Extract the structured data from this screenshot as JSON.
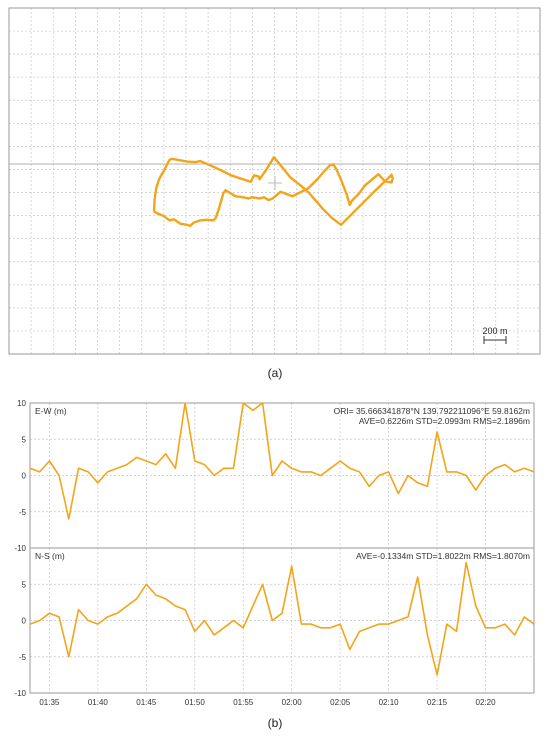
{
  "colors": {
    "track": "#f2a51a",
    "grid": "#c8c8c8",
    "frame": "#9a9a9a",
    "axisline": "#b0b0b0"
  },
  "panel_a": {
    "caption": "(a)",
    "scale_bar_label": "200 m"
  },
  "panel_b": {
    "caption": "(b)"
  },
  "chart_data": [
    {
      "type": "line",
      "panel": "a",
      "title": "",
      "xlabel": "",
      "ylabel": "",
      "scale_bar": "200 m",
      "series": [
        {
          "values": [
            [
              -1100,
              -260
            ],
            [
              -1095,
              -150
            ],
            [
              -1080,
              -50
            ],
            [
              -1055,
              30
            ],
            [
              -1040,
              60
            ],
            [
              -1010,
              110
            ],
            [
              -960,
              210
            ],
            [
              -940,
              220
            ],
            [
              -880,
              210
            ],
            [
              -800,
              195
            ],
            [
              -720,
              190
            ],
            [
              -680,
              200
            ],
            [
              -600,
              165
            ],
            [
              -500,
              120
            ],
            [
              -400,
              70
            ],
            [
              -220,
              10
            ],
            [
              -190,
              70
            ],
            [
              -150,
              60
            ],
            [
              -140,
              35
            ],
            [
              -80,
              120
            ],
            [
              -10,
              235
            ],
            [
              60,
              150
            ],
            [
              140,
              50
            ],
            [
              230,
              -20
            ],
            [
              300,
              -80
            ],
            [
              370,
              -160
            ],
            [
              430,
              -230
            ],
            [
              520,
              -320
            ],
            [
              600,
              -380
            ],
            [
              700,
              -280
            ],
            [
              800,
              -180
            ],
            [
              900,
              -80
            ],
            [
              1000,
              15
            ],
            [
              1060,
              75
            ],
            [
              1070,
              40
            ],
            [
              1060,
              5
            ],
            [
              1000,
              15
            ],
            [
              940,
              80
            ],
            [
              820,
              -20
            ],
            [
              760,
              -100
            ],
            [
              700,
              -160
            ],
            [
              680,
              -200
            ],
            [
              650,
              -100
            ],
            [
              600,
              30
            ],
            [
              560,
              120
            ],
            [
              530,
              170
            ],
            [
              500,
              160
            ],
            [
              450,
              110
            ],
            [
              390,
              40
            ],
            [
              300,
              -50
            ],
            [
              160,
              -120
            ],
            [
              50,
              -80
            ],
            [
              -20,
              -140
            ],
            [
              -60,
              -155
            ],
            [
              -100,
              -130
            ],
            [
              -140,
              -140
            ],
            [
              -210,
              -130
            ],
            [
              -240,
              -140
            ],
            [
              -290,
              -130
            ],
            [
              -360,
              -120
            ],
            [
              -450,
              -65
            ],
            [
              -470,
              -95
            ],
            [
              -510,
              -235
            ],
            [
              -540,
              -320
            ],
            [
              -560,
              -340
            ],
            [
              -620,
              -335
            ],
            [
              -680,
              -340
            ],
            [
              -740,
              -360
            ],
            [
              -770,
              -390
            ],
            [
              -800,
              -380
            ],
            [
              -860,
              -370
            ],
            [
              -890,
              -350
            ],
            [
              -920,
              -330
            ],
            [
              -960,
              -340
            ],
            [
              -1010,
              -300
            ],
            [
              -1060,
              -280
            ],
            [
              -1100,
              -260
            ]
          ]
        }
      ]
    },
    {
      "type": "line",
      "panel": "b-top",
      "title": "E-W (m)",
      "annotation_line1": "ORI= 35.666341878°N  139.792211096°E 59.8162m",
      "annotation_line2": "AVE=0.6226m STD=2.0993m RMS=2.1896m",
      "ylabel": "",
      "xlabel": "",
      "ylim": [
        -10,
        10
      ],
      "yticks": [
        "10",
        "5",
        "0",
        "-5",
        "-10"
      ],
      "xlim": [
        "01:33",
        "02:25"
      ],
      "x_ticklabels": [
        "01:35",
        "01:40",
        "01:45",
        "01:50",
        "01:55",
        "02:00",
        "02:05",
        "02:10",
        "02:15",
        "02:20"
      ],
      "series": [
        {
          "x": [
            "01:33",
            "01:34",
            "01:35",
            "01:36",
            "01:37",
            "01:38",
            "01:39",
            "01:40",
            "01:41",
            "01:42",
            "01:43",
            "01:44",
            "01:45",
            "01:46",
            "01:47",
            "01:48",
            "01:49",
            "01:50",
            "01:51",
            "01:52",
            "01:53",
            "01:54",
            "01:55",
            "01:56",
            "01:57",
            "01:58",
            "01:59",
            "02:00",
            "02:01",
            "02:02",
            "02:03",
            "02:04",
            "02:05",
            "02:06",
            "02:07",
            "02:08",
            "02:09",
            "02:10",
            "02:11",
            "02:12",
            "02:13",
            "02:14",
            "02:15",
            "02:16",
            "02:17",
            "02:18",
            "02:19",
            "02:20",
            "02:21",
            "02:22",
            "02:23",
            "02:24",
            "02:25"
          ],
          "values": [
            1.0,
            0.5,
            2.0,
            0.0,
            -6.0,
            1.0,
            0.5,
            -1.0,
            0.5,
            1.0,
            1.5,
            2.5,
            2.0,
            1.5,
            3.0,
            1.0,
            10.0,
            2.0,
            1.5,
            0.0,
            1.0,
            1.0,
            10.0,
            9.0,
            10.0,
            0.0,
            2.0,
            1.0,
            0.5,
            0.5,
            0.0,
            1.0,
            2.0,
            1.0,
            0.5,
            -1.5,
            0.0,
            0.5,
            -2.5,
            0.0,
            -1.0,
            -1.5,
            6.0,
            0.5,
            0.5,
            0.0,
            -2.0,
            0.0,
            1.0,
            1.5,
            0.5,
            1.0,
            0.5
          ]
        }
      ]
    },
    {
      "type": "line",
      "panel": "b-bottom",
      "title": "N-S (m)",
      "annotation_line1": "AVE=-0.1334m STD=1.8022m RMS=1.8070m",
      "ylabel": "",
      "xlabel": "",
      "ylim": [
        -10,
        10
      ],
      "yticks": [
        "10",
        "5",
        "0",
        "-5",
        "-10"
      ],
      "xlim": [
        "01:33",
        "02:25"
      ],
      "x_ticklabels": [
        "01:35",
        "01:40",
        "01:45",
        "01:50",
        "01:55",
        "02:00",
        "02:05",
        "02:10",
        "02:15",
        "02:20"
      ],
      "series": [
        {
          "x": [
            "01:33",
            "01:34",
            "01:35",
            "01:36",
            "01:37",
            "01:38",
            "01:39",
            "01:40",
            "01:41",
            "01:42",
            "01:43",
            "01:44",
            "01:45",
            "01:46",
            "01:47",
            "01:48",
            "01:49",
            "01:50",
            "01:51",
            "01:52",
            "01:53",
            "01:54",
            "01:55",
            "01:56",
            "01:57",
            "01:58",
            "01:59",
            "02:00",
            "02:01",
            "02:02",
            "02:03",
            "02:04",
            "02:05",
            "02:06",
            "02:07",
            "02:08",
            "02:09",
            "02:10",
            "02:11",
            "02:12",
            "02:13",
            "02:14",
            "02:15",
            "02:16",
            "02:17",
            "02:18",
            "02:19",
            "02:20",
            "02:21",
            "02:22",
            "02:23",
            "02:24",
            "02:25"
          ],
          "values": [
            -0.5,
            0.0,
            1.0,
            0.5,
            -5.0,
            1.5,
            0.0,
            -0.5,
            0.5,
            1.0,
            2.0,
            3.0,
            5.0,
            3.5,
            3.0,
            2.0,
            1.5,
            -1.5,
            0.0,
            -2.0,
            -1.0,
            0.0,
            -1.0,
            2.0,
            5.0,
            0.0,
            1.0,
            7.5,
            -0.5,
            -0.5,
            -1.0,
            -1.0,
            -0.5,
            -4.0,
            -1.5,
            -1.0,
            -0.5,
            -0.5,
            0.0,
            0.5,
            6.0,
            -2.0,
            -7.5,
            -0.5,
            -1.5,
            8.0,
            2.0,
            -1.0,
            -1.0,
            -0.5,
            -2.0,
            0.5,
            -0.5
          ]
        }
      ]
    }
  ]
}
